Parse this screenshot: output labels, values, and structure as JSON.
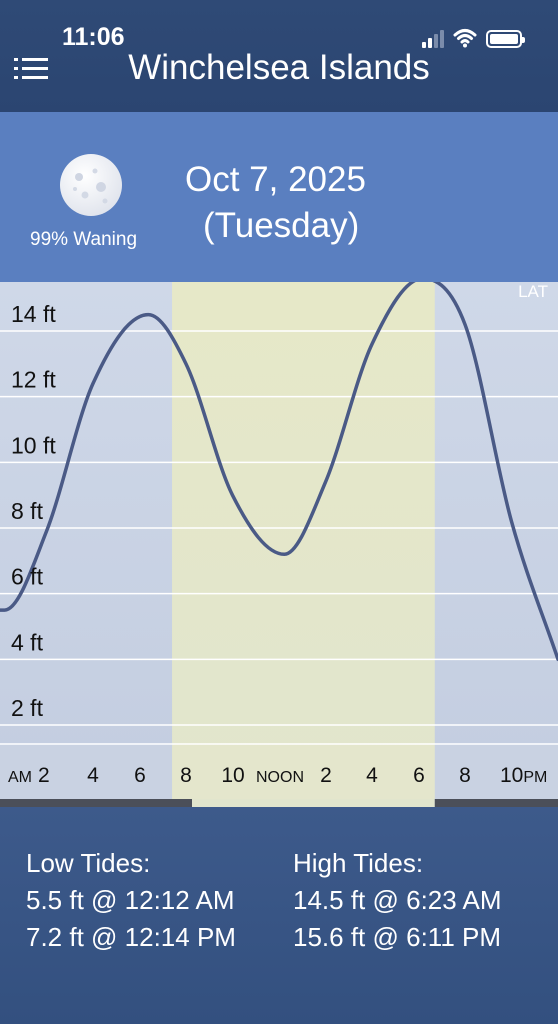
{
  "status_bar": {
    "time": "11:06"
  },
  "header": {
    "title": "Winchelsea Islands"
  },
  "moon": {
    "phase_label": "99% Waning",
    "illumination": 0.99
  },
  "date": {
    "date": "Oct 7, 2025",
    "day": "(Tuesday)"
  },
  "chart_data": {
    "type": "line",
    "title": "",
    "datum_label": "LAT",
    "xlabel": "",
    "ylabel": "",
    "x_range_hours": [
      0,
      24
    ],
    "ylim": [
      0,
      16
    ],
    "y_ticks": [
      {
        "value": 2,
        "label": "2 ft"
      },
      {
        "value": 4,
        "label": "4 ft"
      },
      {
        "value": 6,
        "label": "6 ft"
      },
      {
        "value": 8,
        "label": "8 ft"
      },
      {
        "value": 10,
        "label": "10 ft"
      },
      {
        "value": 12,
        "label": "12 ft"
      },
      {
        "value": 14,
        "label": "14 ft"
      }
    ],
    "x_ticks": [
      {
        "hour": 0,
        "prefix": "AM",
        "label": "2",
        "hour_value": 2
      },
      {
        "hour": 4,
        "label": "4"
      },
      {
        "hour": 6,
        "label": "6"
      },
      {
        "hour": 8,
        "label": "8"
      },
      {
        "hour": 10,
        "label": "10"
      },
      {
        "hour": 12,
        "label": "NOON"
      },
      {
        "hour": 14,
        "label": "2"
      },
      {
        "hour": 16,
        "label": "4"
      },
      {
        "hour": 18,
        "label": "6"
      },
      {
        "hour": 20,
        "label": "8"
      },
      {
        "hour": 22,
        "label": "10",
        "suffix": "PM"
      }
    ],
    "daylight_hours": [
      7.4,
      18.7
    ],
    "series": [
      {
        "x_hours": [
          0,
          0.2,
          2,
          4,
          6.38,
          8,
          10,
          12.23,
          14,
          16,
          18.18,
          20,
          22,
          24
        ],
        "y_ft": [
          5.5,
          5.5,
          7.9,
          12.4,
          14.5,
          13.0,
          9.0,
          7.2,
          9.4,
          13.6,
          15.6,
          14.2,
          8.2,
          4.0
        ]
      }
    ]
  },
  "footer": {
    "low_title": "Low Tides:",
    "high_title": "High Tides:",
    "low": [
      "5.5 ft @ 12:12 AM",
      "7.2 ft @ 12:14 PM"
    ],
    "high": [
      "14.5 ft @ 6:23 AM",
      "15.6 ft @ 6:11 PM"
    ]
  },
  "colors": {
    "header": "#2f4a76",
    "info_band": "#5a7fc0",
    "night": "#c8d2e3",
    "day": "#e4e7c9",
    "curve": "#4a5a86",
    "footer": "#3a5686"
  },
  "icons": [
    "menu-icon",
    "signal-icon",
    "wifi-icon",
    "battery-icon",
    "moon-icon"
  ]
}
